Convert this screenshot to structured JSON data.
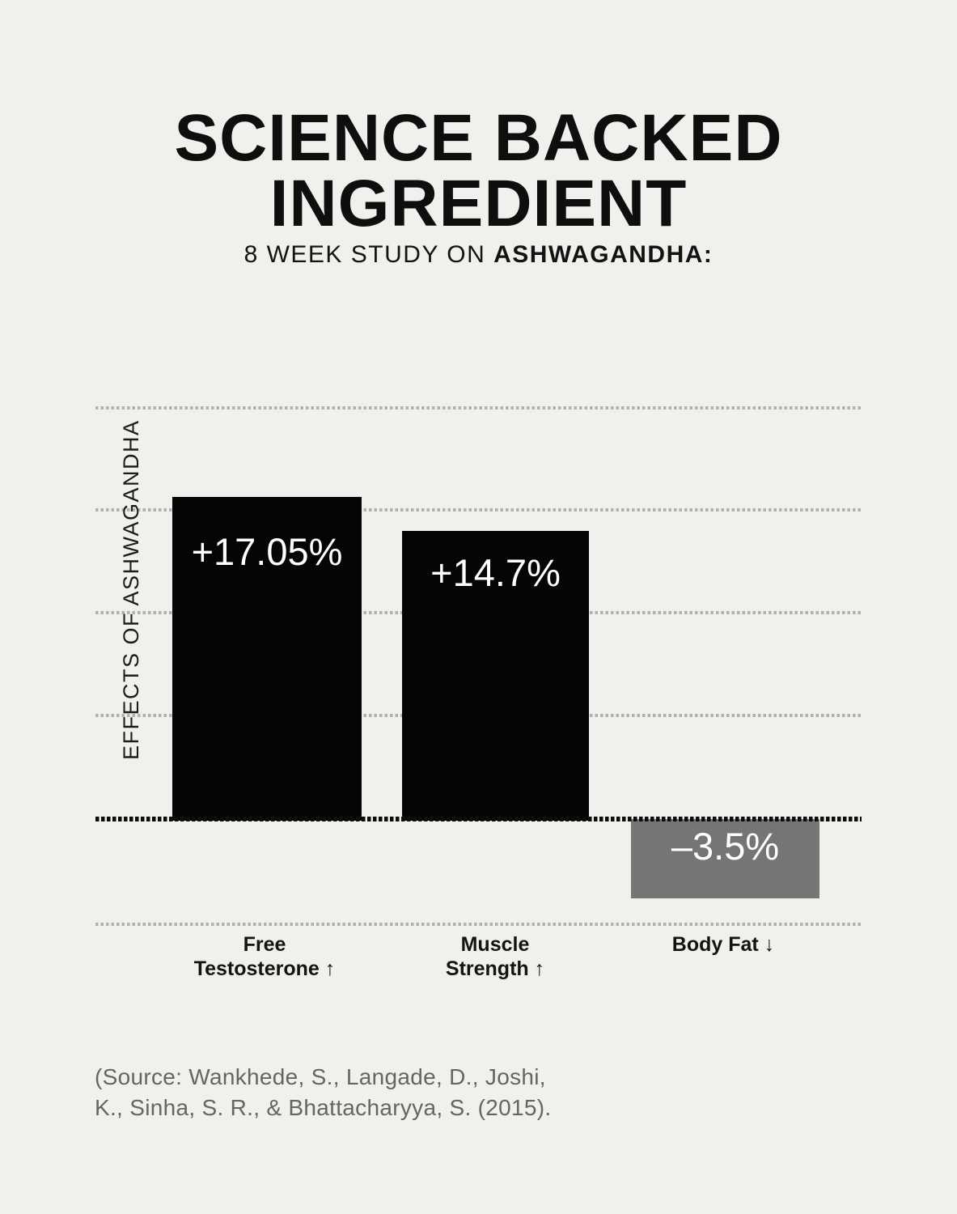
{
  "page": {
    "background_color": "#f0f1ec",
    "accent_black": "#050505",
    "accent_gray": "#757575"
  },
  "header": {
    "title_line1": "SCIENCE BACKED",
    "title_line2": "INGREDIENT",
    "subtitle_prefix": "8 WEEK STUDY ON ",
    "subtitle_bold": "ASHWAGANDHA:"
  },
  "chart": {
    "y_axis_label": "EFFECTS OF ASHWAGANDHA",
    "bars": [
      {
        "label": "+17.05%",
        "value": 17.05,
        "category_line1": "Free",
        "category_line2": "Testosterone ↑",
        "color": "#050505"
      },
      {
        "label": "+14.7%",
        "value": 14.7,
        "category_line1": "Muscle",
        "category_line2": "Strength ↑",
        "color": "#050505"
      },
      {
        "label": "–3.5%",
        "value": -3.5,
        "category_line1": "Body Fat ↓",
        "category_line2": "",
        "color": "#757575"
      }
    ]
  },
  "chart_data": {
    "type": "bar",
    "title": "SCIENCE BACKED INGREDIENT",
    "subtitle": "8 WEEK STUDY ON ASHWAGANDHA:",
    "categories": [
      "Free Testosterone ↑",
      "Muscle Strength ↑",
      "Body Fat ↓"
    ],
    "values": [
      17.05,
      14.7,
      -3.5
    ],
    "data_labels": [
      "+17.05%",
      "+14.7%",
      "–3.5%"
    ],
    "bar_colors": [
      "#050505",
      "#050505",
      "#757575"
    ],
    "xlabel": "",
    "ylabel": "EFFECTS OF ASHWAGANDHA",
    "baseline": 0,
    "grid": "horizontal dotted gridlines, zero line emphasized as black dotted",
    "legend": "none",
    "value_unit": "%"
  },
  "source": {
    "line1": "(Source: Wankhede, S., Langade, D., Joshi,",
    "line2": "K., Sinha, S. R., & Bhattacharyya, S. (2015)."
  }
}
